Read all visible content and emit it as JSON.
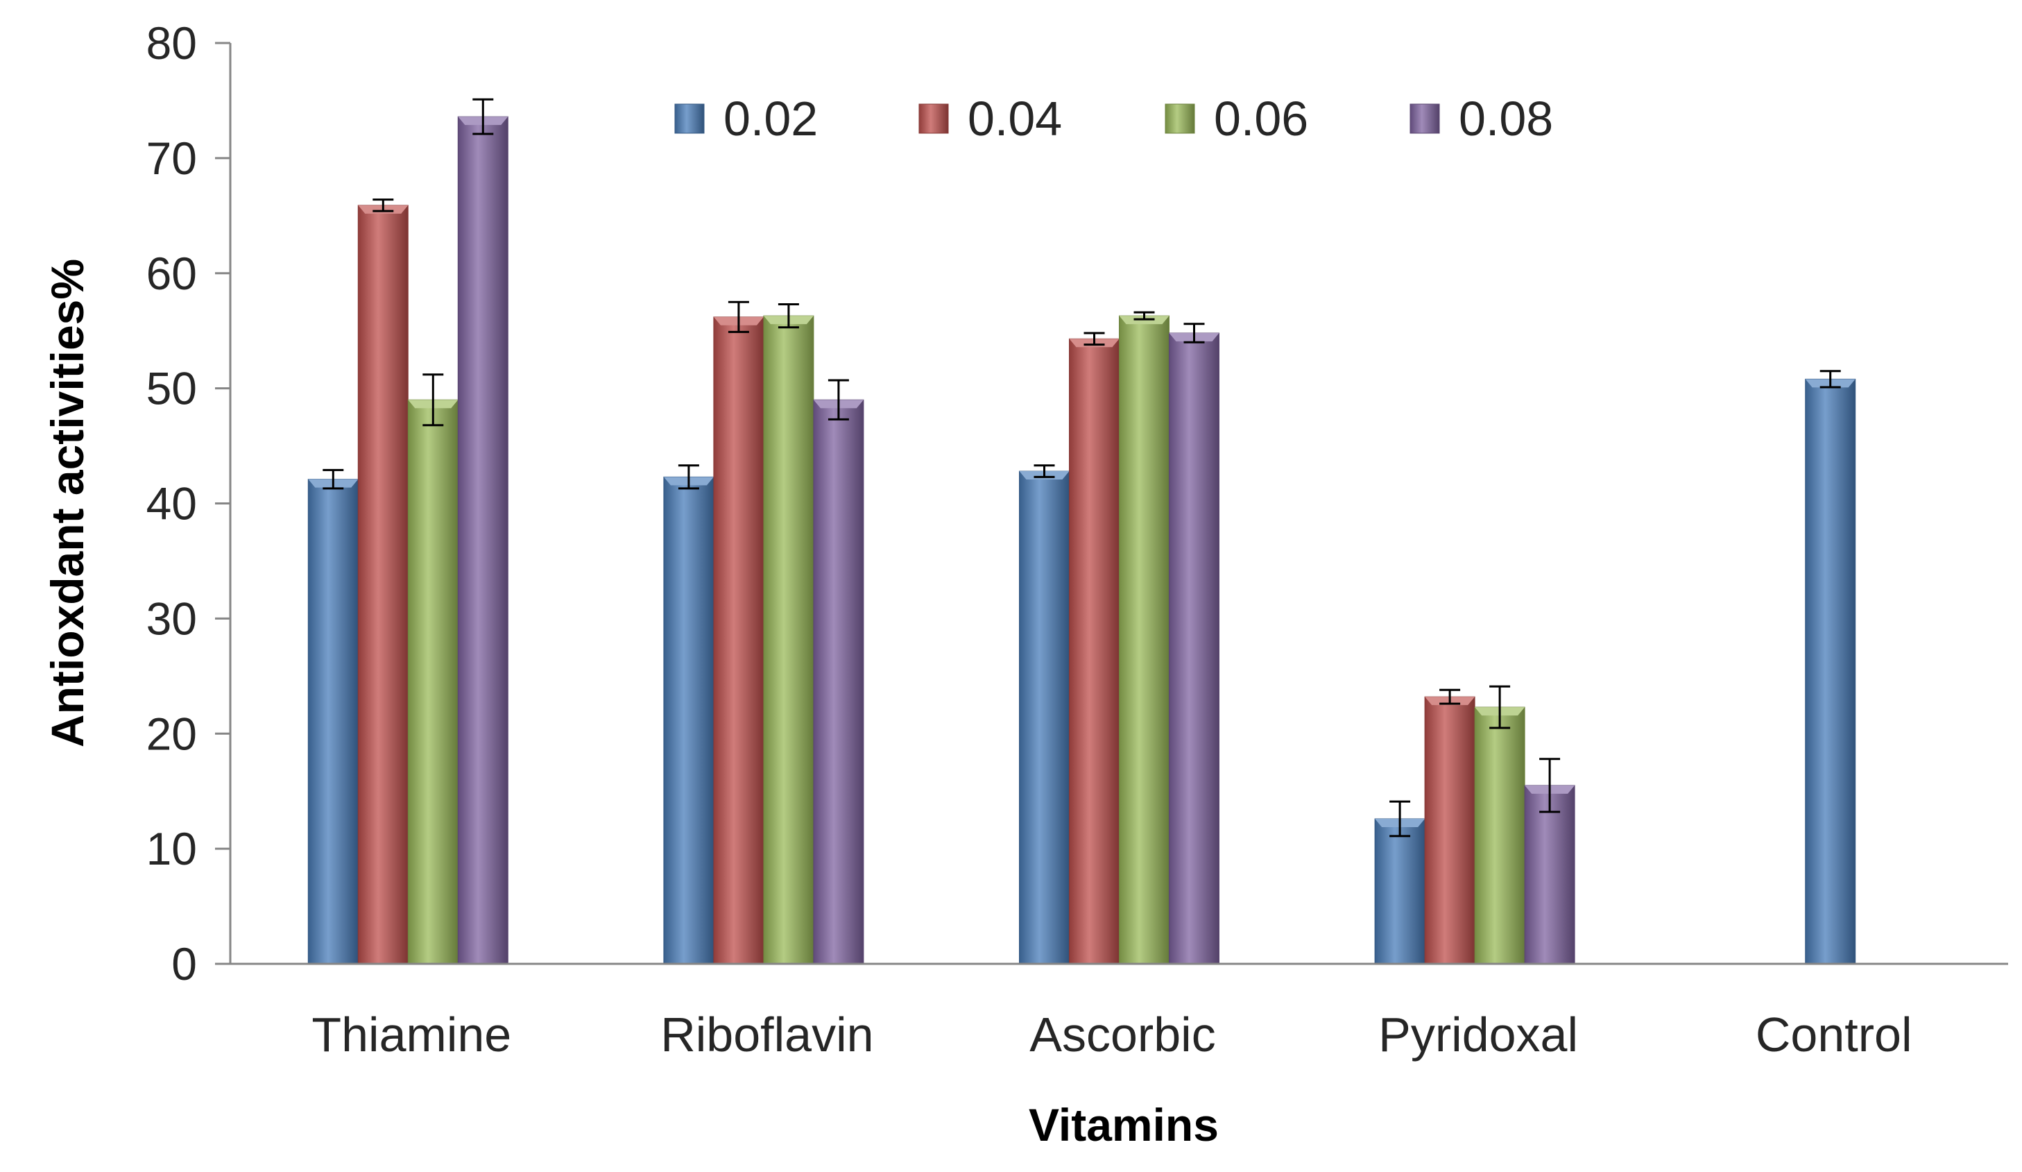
{
  "chart_data": {
    "type": "bar",
    "title": "",
    "xlabel": "Vitamins",
    "ylabel": "Antioxdant activities%",
    "ylim": [
      0,
      80
    ],
    "yticks": [
      "0",
      "10",
      "20",
      "30",
      "40",
      "50",
      "60",
      "70",
      "80"
    ],
    "grid": false,
    "legend_position": "top-center",
    "categories": [
      "Thiamine",
      "Riboflavin",
      "Ascorbic",
      "Pyridoxal",
      "Control"
    ],
    "series": [
      {
        "name": "0.02",
        "color": "#4a7ebb",
        "values": [
          42.1,
          42.3,
          42.8,
          12.6,
          50.8
        ],
        "errors": [
          0.8,
          1.0,
          0.5,
          1.5,
          0.7
        ]
      },
      {
        "name": "0.04",
        "color": "#c0504d",
        "values": [
          65.9,
          56.2,
          54.3,
          23.2,
          null
        ],
        "errors": [
          0.5,
          1.3,
          0.5,
          0.6,
          null
        ]
      },
      {
        "name": "0.06",
        "color": "#9bbb59",
        "values": [
          49.0,
          56.3,
          56.3,
          22.3,
          null
        ],
        "errors": [
          2.2,
          1.0,
          0.3,
          1.8,
          null
        ]
      },
      {
        "name": "0.08",
        "color": "#8064a2",
        "values": [
          73.6,
          49.0,
          54.8,
          15.5,
          null
        ],
        "errors": [
          1.5,
          1.7,
          0.8,
          2.3,
          null
        ]
      }
    ]
  }
}
